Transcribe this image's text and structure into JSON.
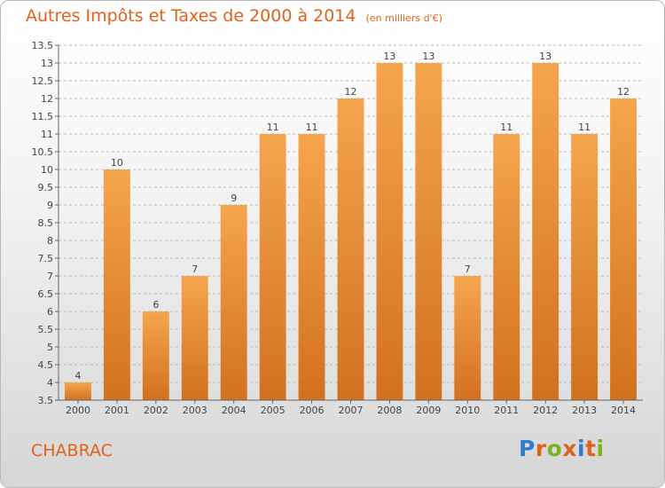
{
  "header": {
    "title": "Autres Impôts et Taxes de 2000 à 2014",
    "unit": "(en milliers d'€)"
  },
  "footer": {
    "commune": "CHABRAC",
    "logo_text": "Proxiti",
    "logo_colors": [
      "#2e7dd1",
      "#e0621c",
      "#7ab51d",
      "#e0621c",
      "#2e7dd1",
      "#e0621c",
      "#7ab51d"
    ]
  },
  "colors": {
    "accent": "#e0621c",
    "bar_top": "#f5a54e",
    "bar_bottom": "#d2711f",
    "grid": "#bbbbbb",
    "label": "#444444"
  },
  "chart_data": {
    "type": "bar",
    "title": "Autres Impôts et Taxes de 2000 à 2014",
    "xlabel": "",
    "ylabel": "",
    "categories": [
      "2000",
      "2001",
      "2002",
      "2003",
      "2004",
      "2005",
      "2006",
      "2007",
      "2008",
      "2009",
      "2010",
      "2011",
      "2012",
      "2013",
      "2014"
    ],
    "values": [
      4,
      10,
      6,
      7,
      9,
      11,
      11,
      12,
      13,
      13,
      7,
      11,
      13,
      11,
      12
    ],
    "ylim": [
      3.5,
      13.5
    ],
    "ytick_step": 0.5,
    "yticks": [
      "3.5",
      "4",
      "4.5",
      "5",
      "5.5",
      "6",
      "6.5",
      "7",
      "7.5",
      "8",
      "8.5",
      "9",
      "9.5",
      "10",
      "10.5",
      "11",
      "11.5",
      "12",
      "12.5",
      "13",
      "13.5"
    ],
    "grid": "horizontal-dashed",
    "data_labels": true
  }
}
